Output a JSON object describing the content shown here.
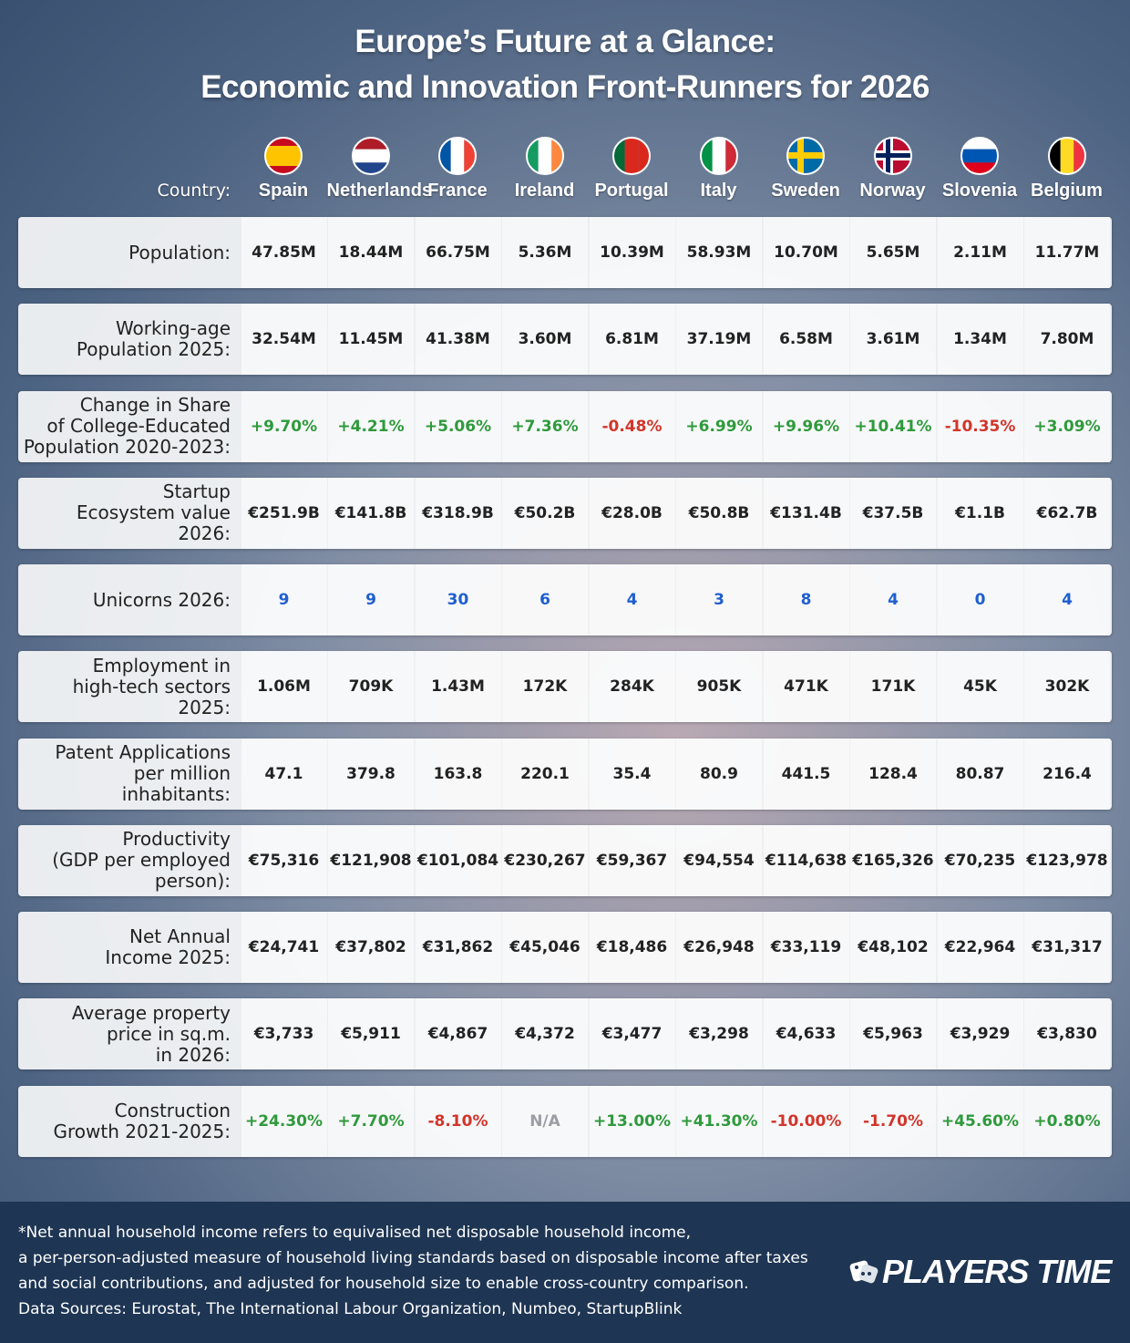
{
  "title": [
    "Europe’s Future at a Glance:",
    "Economic and Innovation Front-Runners for 2026"
  ],
  "colors": {
    "positive": "#2f9a3c",
    "negative": "#d2352b",
    "muted": "#9a9ea4",
    "accent": "#1f5fcf"
  },
  "table": {
    "header_label": "Country:",
    "countries": [
      "Spain",
      "Netherlands",
      "France",
      "Ireland",
      "Portugal",
      "Italy",
      "Sweden",
      "Norway",
      "Slovenia",
      "Belgium"
    ],
    "rows": [
      {
        "label": [
          "Population:"
        ],
        "cells": [
          "47.85M",
          "18.44M",
          "66.75M",
          "5.36M",
          "10.39M",
          "58.93M",
          "10.70M",
          "5.65M",
          "2.11M",
          "11.77M"
        ]
      },
      {
        "label": [
          "Working-age",
          "Population 2025:"
        ],
        "cells": [
          "32.54M",
          "11.45M",
          "41.38M",
          "3.60M",
          "6.81M",
          "37.19M",
          "6.58M",
          "3.61M",
          "1.34M",
          "7.80M"
        ]
      },
      {
        "label": [
          "Change in Share",
          "of College-Educated",
          "Population 2020-2023:"
        ],
        "cells": [
          "+9.70%",
          "+4.21%",
          "+5.06%",
          "+7.36%",
          "-0.48%",
          "+6.99%",
          "+9.96%",
          "+10.41%",
          "-10.35%",
          "+3.09%"
        ]
      },
      {
        "label": [
          "Startup",
          "Ecosystem value",
          "2026:"
        ],
        "cells": [
          "€251.9B",
          "€141.8B",
          "€318.9B",
          "€50.2B",
          "€28.0B",
          "€50.8B",
          "€131.4B",
          "€37.5B",
          "€1.1B",
          "€62.7B"
        ]
      },
      {
        "label": [
          "Unicorns 2026:"
        ],
        "accent": true,
        "cells": [
          "9",
          "9",
          "30",
          "6",
          "4",
          "3",
          "8",
          "4",
          "0",
          "4"
        ]
      },
      {
        "label": [
          "Employment in",
          "high-tech sectors",
          "2025:"
        ],
        "cells": [
          "1.06M",
          "709K",
          "1.43M",
          "172K",
          "284K",
          "905K",
          "471K",
          "171K",
          "45K",
          "302K"
        ]
      },
      {
        "label": [
          "Patent Applications",
          "per million",
          "inhabitants:"
        ],
        "cells": [
          "47.1",
          "379.8",
          "163.8",
          "220.1",
          "35.4",
          "80.9",
          "441.5",
          "128.4",
          "80.87",
          "216.4"
        ]
      },
      {
        "label": [
          "Productivity",
          "(GDP per employed",
          "person):"
        ],
        "cells": [
          "€75,316",
          "€121,908",
          "€101,084",
          "€230,267",
          "€59,367",
          "€94,554",
          "€114,638",
          "€165,326",
          "€70,235",
          "€123,978"
        ]
      },
      {
        "label": [
          "Net Annual",
          "Income 2025:"
        ],
        "cells": [
          "€24,741",
          "€37,802",
          "€31,862",
          "€45,046",
          "€18,486",
          "€26,948",
          "€33,119",
          "€48,102",
          "€22,964",
          "€31,317"
        ]
      },
      {
        "label": [
          "Average property",
          "price in sq.m.",
          "in 2026:"
        ],
        "cells": [
          "€3,733",
          "€5,911",
          "€4,867",
          "€4,372",
          "€3,477",
          "€3,298",
          "€4,633",
          "€5,963",
          "€3,929",
          "€3,830"
        ]
      },
      {
        "label": [
          "Construction",
          "Growth 2021-2025:"
        ],
        "cells": [
          "+24.30%",
          "+7.70%",
          "-8.10%",
          "N/A",
          "+13.00%",
          "+41.30%",
          "-10.00%",
          "-1.70%",
          "+45.60%",
          "+0.80%"
        ]
      }
    ]
  },
  "footer": {
    "notes": [
      "*Net annual household income refers to equivalised net disposable household income,",
      "a per-person-adjusted measure of household living standards based on disposable income after taxes",
      "and social contributions, and adjusted for household size to enable cross-country comparison.",
      "Data Sources: Eurostat, The International Labour Organization, Numbeo, StartupBlink"
    ],
    "logo": "PLAYERS TIME"
  }
}
